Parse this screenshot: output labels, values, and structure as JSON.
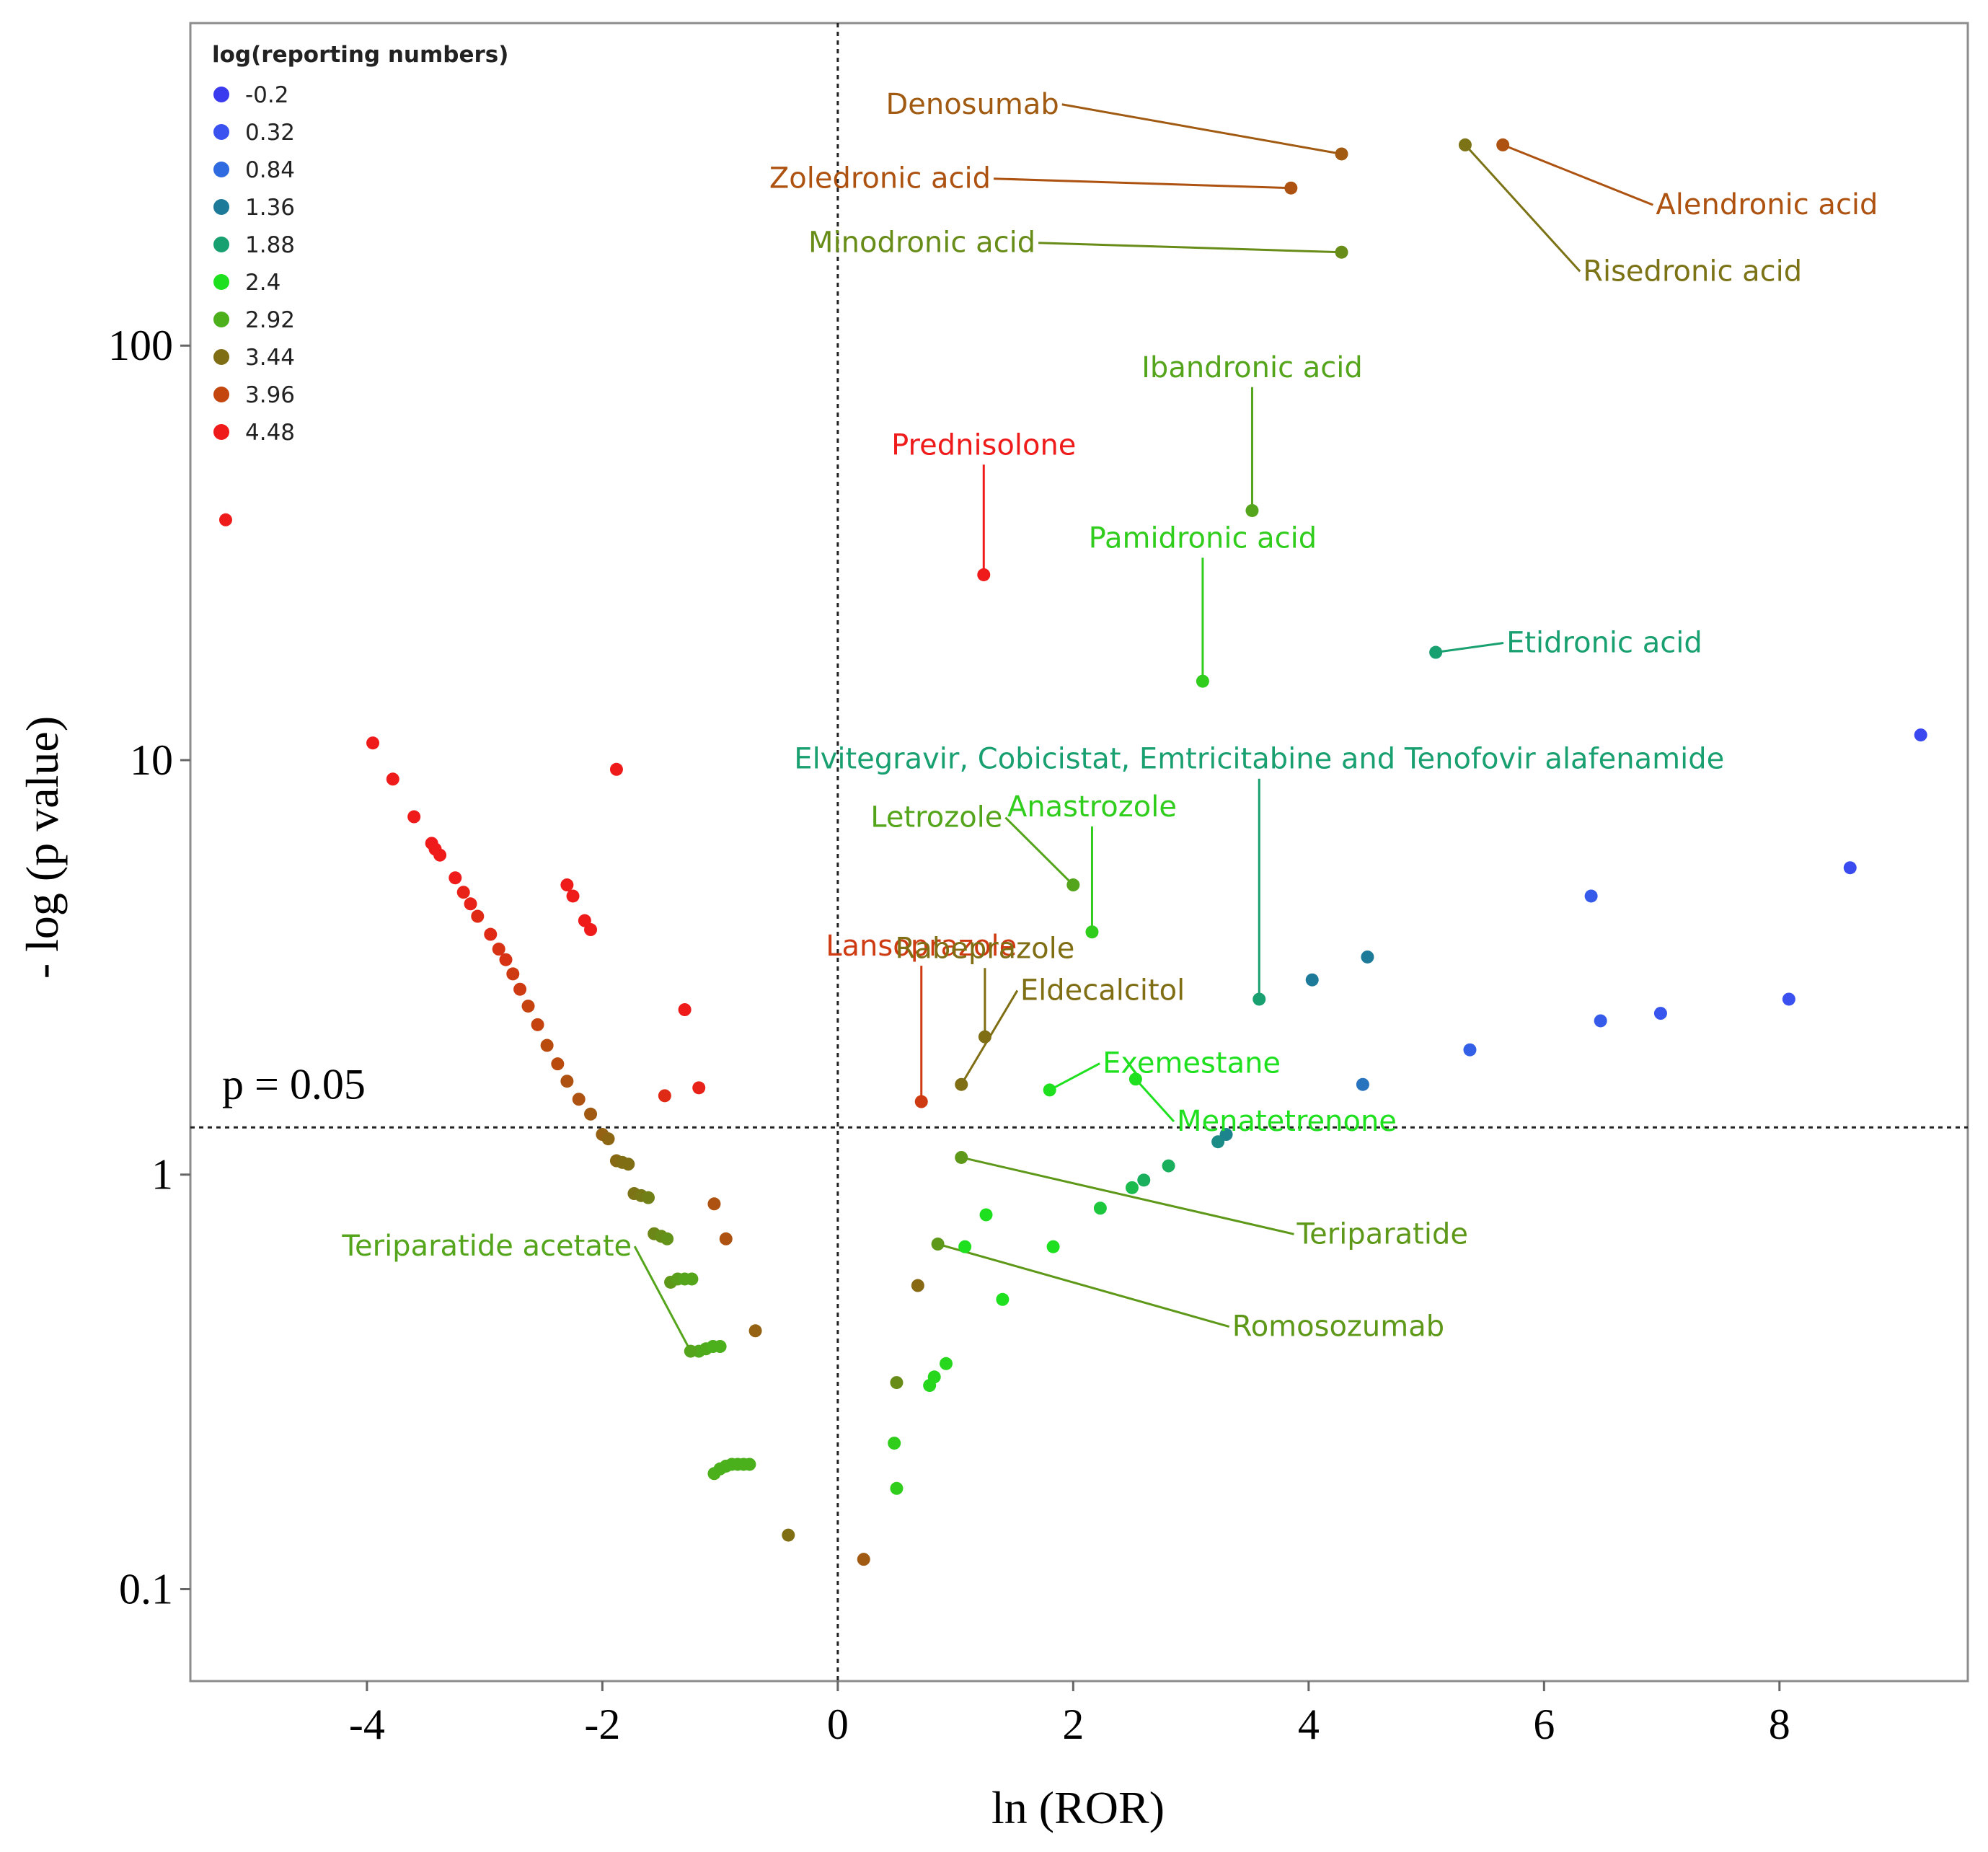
{
  "chart_data": {
    "type": "scatter",
    "title": "",
    "xlabel": "ln (ROR)",
    "ylabel": "- log (p value)",
    "y_scale": "log",
    "xlim": [
      -5.5,
      9.6
    ],
    "ylim": [
      0.06,
      600
    ],
    "x_ticks": [
      -4,
      -2,
      0,
      2,
      4,
      6,
      8
    ],
    "x_tick_labels": [
      "-4",
      "-2",
      "0",
      "2",
      "4",
      "6",
      "8"
    ],
    "y_ticks": [
      0.1,
      1,
      10,
      100
    ],
    "y_tick_labels": [
      "0.1",
      "1",
      "10",
      "100"
    ],
    "threshold_label": "p = 0.05",
    "threshold_y": 1.3,
    "vertical_line_x": 0,
    "grid": false,
    "legend": {
      "title": "log(reporting numbers)",
      "placement": "top-left",
      "levels": [
        -0.2,
        0.32,
        0.84,
        1.36,
        1.88,
        2.4,
        2.92,
        3.44,
        3.96,
        4.48
      ],
      "labels": [
        "-0.2",
        "0.32",
        "0.84",
        "1.36",
        "1.88",
        "2.4",
        "2.92",
        "3.44",
        "3.96",
        "4.48"
      ],
      "colors": [
        "#3a3aef",
        "#3a52ef",
        "#2f6be0",
        "#1e7a99",
        "#19a070",
        "#1ee01e",
        "#4caf1c",
        "#7f6e14",
        "#c2460e",
        "#ef1b1b"
      ]
    },
    "labeled_points": [
      {
        "name": "Denosumab",
        "x": 4.28,
        "y": 290,
        "level": 3.7,
        "label_dx": -2.4,
        "label_dy": 1.25
      },
      {
        "name": "Zoledronic acid",
        "x": 3.85,
        "y": 240,
        "level": 3.8,
        "label_dx": -2.55,
        "label_dy": 1.0
      },
      {
        "name": "Minodronic acid",
        "x": 4.28,
        "y": 168,
        "level": 3.2,
        "label_dx": -2.6,
        "label_dy": 1.0
      },
      {
        "name": "Risedronic acid",
        "x": 5.33,
        "y": 305,
        "level": 3.4,
        "label_dx": 1.0,
        "label_dy": 0.47
      },
      {
        "name": "Alendronic acid",
        "x": 5.65,
        "y": 305,
        "level": 3.8,
        "label_dx": 1.3,
        "label_dy": 0.68
      },
      {
        "name": "Ibandronic acid",
        "x": 3.52,
        "y": 40,
        "level": 3.0,
        "label_dx": 0.0,
        "label_dy": 2.1
      },
      {
        "name": "Prednisolone",
        "x": 1.24,
        "y": 28,
        "level": 4.48,
        "label_dx": 0.0,
        "label_dy": 1.95
      },
      {
        "name": "Pamidronic acid",
        "x": 3.1,
        "y": 15.5,
        "level": 2.6,
        "label_dx": 0.0,
        "label_dy": 2.1
      },
      {
        "name": "Etidronic acid",
        "x": 5.08,
        "y": 18.2,
        "level": 1.88,
        "label_dx": 0.6,
        "label_dy": 1.0
      },
      {
        "name": "Elvitegravir, Cobicistat, Emtricitabine and Tenofovir alafenamide",
        "x": 3.58,
        "y": 2.65,
        "level": 1.88,
        "label_dx": 0.0,
        "label_dy": 3.6
      },
      {
        "name": "Letrozole",
        "x": 2.0,
        "y": 5.0,
        "level": 3.0,
        "label_dx": -0.6,
        "label_dy": 1.38
      },
      {
        "name": "Anastrozole",
        "x": 2.16,
        "y": 3.85,
        "level": 2.6,
        "label_dx": 0.0,
        "label_dy": 1.9
      },
      {
        "name": "Lansoprazole",
        "x": 0.71,
        "y": 1.5,
        "level": 4.1,
        "label_dx": 0.0,
        "label_dy": 2.25
      },
      {
        "name": "Rabeprazole",
        "x": 1.25,
        "y": 2.15,
        "level": 3.44,
        "label_dx": 0.0,
        "label_dy": 1.55
      },
      {
        "name": "Eldecalcitol",
        "x": 1.05,
        "y": 1.65,
        "level": 3.44,
        "label_dx": 0.5,
        "label_dy": 1.6
      },
      {
        "name": "Exemestane",
        "x": 1.8,
        "y": 1.6,
        "level": 2.4,
        "label_dx": 0.45,
        "label_dy": 1.1
      },
      {
        "name": "Menatetrenone",
        "x": 2.53,
        "y": 1.7,
        "level": 2.4,
        "label_dx": 0.35,
        "label_dy": 0.75
      },
      {
        "name": "Teriparatide",
        "x": 1.05,
        "y": 1.1,
        "level": 3.1,
        "label_dx": 2.85,
        "label_dy": 0.62
      },
      {
        "name": "Romosozumab",
        "x": 0.85,
        "y": 0.68,
        "level": 3.1,
        "label_dx": 2.5,
        "label_dy": 0.6
      },
      {
        "name": "Teriparatide acetate",
        "x": -1.25,
        "y": 0.375,
        "level": 3.0,
        "label_dx": -0.5,
        "label_dy": 1.7
      }
    ],
    "points": [
      {
        "x": -5.2,
        "y": 38,
        "level": 4.48
      },
      {
        "x": -3.95,
        "y": 11.0,
        "level": 4.48
      },
      {
        "x": -3.78,
        "y": 9.0,
        "level": 4.48
      },
      {
        "x": -3.6,
        "y": 7.3,
        "level": 4.48
      },
      {
        "x": -3.45,
        "y": 6.3,
        "level": 4.48
      },
      {
        "x": -3.42,
        "y": 6.1,
        "level": 4.48
      },
      {
        "x": -3.38,
        "y": 5.9,
        "level": 4.48
      },
      {
        "x": -3.25,
        "y": 5.2,
        "level": 4.48
      },
      {
        "x": -3.18,
        "y": 4.8,
        "level": 4.4
      },
      {
        "x": -3.12,
        "y": 4.5,
        "level": 4.4
      },
      {
        "x": -3.06,
        "y": 4.2,
        "level": 4.3
      },
      {
        "x": -2.95,
        "y": 3.8,
        "level": 4.3
      },
      {
        "x": -2.88,
        "y": 3.5,
        "level": 4.2
      },
      {
        "x": -2.82,
        "y": 3.3,
        "level": 4.2
      },
      {
        "x": -2.76,
        "y": 3.05,
        "level": 4.1
      },
      {
        "x": -2.7,
        "y": 2.8,
        "level": 4.1
      },
      {
        "x": -2.63,
        "y": 2.55,
        "level": 4.0
      },
      {
        "x": -2.55,
        "y": 2.3,
        "level": 4.0
      },
      {
        "x": -2.47,
        "y": 2.05,
        "level": 3.9
      },
      {
        "x": -2.38,
        "y": 1.85,
        "level": 3.9
      },
      {
        "x": -2.3,
        "y": 1.68,
        "level": 3.8
      },
      {
        "x": -2.2,
        "y": 1.52,
        "level": 3.8
      },
      {
        "x": -2.1,
        "y": 1.4,
        "level": 3.7
      },
      {
        "x": -2.0,
        "y": 1.25,
        "level": 3.6
      },
      {
        "x": -1.95,
        "y": 1.22,
        "level": 3.55
      },
      {
        "x": -1.88,
        "y": 1.08,
        "level": 3.5
      },
      {
        "x": -1.83,
        "y": 1.07,
        "level": 3.45
      },
      {
        "x": -1.78,
        "y": 1.06,
        "level": 3.44
      },
      {
        "x": -1.73,
        "y": 0.9,
        "level": 3.4
      },
      {
        "x": -1.67,
        "y": 0.89,
        "level": 3.35
      },
      {
        "x": -1.61,
        "y": 0.88,
        "level": 3.3
      },
      {
        "x": -1.56,
        "y": 0.72,
        "level": 3.25
      },
      {
        "x": -1.5,
        "y": 0.71,
        "level": 3.2
      },
      {
        "x": -1.45,
        "y": 0.7,
        "level": 3.15
      },
      {
        "x": -1.42,
        "y": 0.55,
        "level": 3.1
      },
      {
        "x": -1.36,
        "y": 0.56,
        "level": 3.05
      },
      {
        "x": -1.3,
        "y": 0.56,
        "level": 3.0
      },
      {
        "x": -1.24,
        "y": 0.56,
        "level": 3.0
      },
      {
        "x": -1.18,
        "y": 0.375,
        "level": 2.95
      },
      {
        "x": -1.12,
        "y": 0.38,
        "level": 2.95
      },
      {
        "x": -1.06,
        "y": 0.385,
        "level": 2.92
      },
      {
        "x": -1.0,
        "y": 0.385,
        "level": 2.92
      },
      {
        "x": -1.05,
        "y": 0.19,
        "level": 2.92
      },
      {
        "x": -1.0,
        "y": 0.195,
        "level": 2.9
      },
      {
        "x": -0.95,
        "y": 0.198,
        "level": 2.9
      },
      {
        "x": -0.9,
        "y": 0.2,
        "level": 2.9
      },
      {
        "x": -0.85,
        "y": 0.2,
        "level": 2.9
      },
      {
        "x": -0.8,
        "y": 0.2,
        "level": 2.9
      },
      {
        "x": -0.75,
        "y": 0.2,
        "level": 2.9
      },
      {
        "x": -2.3,
        "y": 5.0,
        "level": 4.48
      },
      {
        "x": -2.25,
        "y": 4.7,
        "level": 4.48
      },
      {
        "x": -2.15,
        "y": 4.1,
        "level": 4.48
      },
      {
        "x": -2.1,
        "y": 3.9,
        "level": 4.48
      },
      {
        "x": -1.88,
        "y": 9.5,
        "level": 4.48
      },
      {
        "x": -1.3,
        "y": 2.5,
        "level": 4.48
      },
      {
        "x": -1.47,
        "y": 1.55,
        "level": 4.3
      },
      {
        "x": -1.18,
        "y": 1.62,
        "level": 4.4
      },
      {
        "x": -1.05,
        "y": 0.85,
        "level": 3.8
      },
      {
        "x": -0.95,
        "y": 0.7,
        "level": 3.8
      },
      {
        "x": -0.7,
        "y": 0.42,
        "level": 3.6
      },
      {
        "x": -0.42,
        "y": 0.135,
        "level": 3.44
      },
      {
        "x": 0.22,
        "y": 0.118,
        "level": 3.7
      },
      {
        "x": 0.5,
        "y": 0.315,
        "level": 3.2
      },
      {
        "x": 0.48,
        "y": 0.225,
        "level": 2.6
      },
      {
        "x": 0.5,
        "y": 0.175,
        "level": 2.6
      },
      {
        "x": 0.68,
        "y": 0.54,
        "level": 3.5
      },
      {
        "x": 0.78,
        "y": 0.31,
        "level": 2.5
      },
      {
        "x": 0.82,
        "y": 0.325,
        "level": 2.5
      },
      {
        "x": 0.92,
        "y": 0.35,
        "level": 2.5
      },
      {
        "x": 1.08,
        "y": 0.67,
        "level": 2.4
      },
      {
        "x": 1.26,
        "y": 0.8,
        "level": 2.4
      },
      {
        "x": 1.4,
        "y": 0.5,
        "level": 2.4
      },
      {
        "x": 1.83,
        "y": 0.67,
        "level": 2.4
      },
      {
        "x": 2.23,
        "y": 0.83,
        "level": 2.2
      },
      {
        "x": 2.5,
        "y": 0.93,
        "level": 2.1
      },
      {
        "x": 2.6,
        "y": 0.97,
        "level": 2.0
      },
      {
        "x": 2.81,
        "y": 1.05,
        "level": 2.0
      },
      {
        "x": 3.23,
        "y": 1.2,
        "level": 1.6
      },
      {
        "x": 3.3,
        "y": 1.25,
        "level": 1.5
      },
      {
        "x": 4.03,
        "y": 2.95,
        "level": 1.36
      },
      {
        "x": 4.5,
        "y": 3.35,
        "level": 1.36
      },
      {
        "x": 4.46,
        "y": 1.65,
        "level": 1.1
      },
      {
        "x": 5.37,
        "y": 2.0,
        "level": 0.6
      },
      {
        "x": 6.4,
        "y": 4.7,
        "level": 0.5
      },
      {
        "x": 6.48,
        "y": 2.35,
        "level": 0.5
      },
      {
        "x": 6.99,
        "y": 2.45,
        "level": 0.4
      },
      {
        "x": 8.08,
        "y": 2.65,
        "level": 0.3
      },
      {
        "x": 8.6,
        "y": 5.5,
        "level": 0.2
      },
      {
        "x": 9.2,
        "y": 11.5,
        "level": 0.1
      }
    ]
  }
}
